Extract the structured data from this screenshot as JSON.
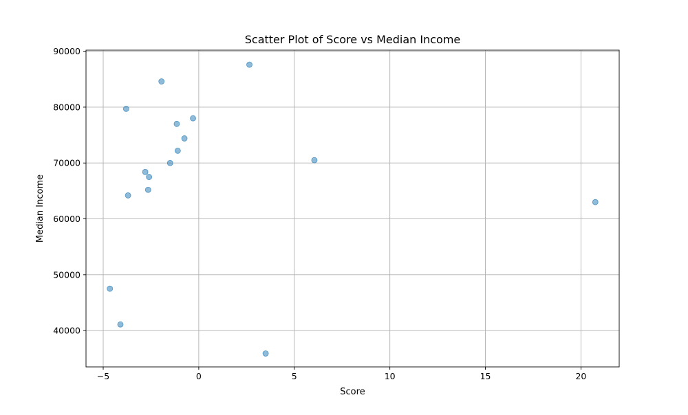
{
  "chart_data": {
    "type": "scatter",
    "title": "Scatter Plot of Score vs Median Income",
    "xlabel": "Score",
    "ylabel": "Median Income",
    "xlim": [
      -5.9,
      22.0
    ],
    "ylim": [
      33500,
      90200
    ],
    "xticks": [
      -5,
      0,
      5,
      10,
      15,
      20
    ],
    "yticks": [
      40000,
      50000,
      60000,
      70000,
      80000,
      90000
    ],
    "grid": true,
    "marker_color": "#1f77b4",
    "marker_alpha": 0.5,
    "points": [
      {
        "x": 2.65,
        "y": 87600
      },
      {
        "x": -1.95,
        "y": 84600
      },
      {
        "x": -3.8,
        "y": 79700
      },
      {
        "x": -0.3,
        "y": 78000
      },
      {
        "x": -1.15,
        "y": 77000
      },
      {
        "x": -0.75,
        "y": 74400
      },
      {
        "x": -1.1,
        "y": 72200
      },
      {
        "x": 6.05,
        "y": 70500
      },
      {
        "x": -1.5,
        "y": 70000
      },
      {
        "x": -2.8,
        "y": 68400
      },
      {
        "x": -2.6,
        "y": 67500
      },
      {
        "x": -2.65,
        "y": 65200
      },
      {
        "x": -3.7,
        "y": 64200
      },
      {
        "x": 20.75,
        "y": 63000
      },
      {
        "x": -4.65,
        "y": 47500
      },
      {
        "x": -4.1,
        "y": 41100
      },
      {
        "x": 3.5,
        "y": 35900
      }
    ]
  }
}
